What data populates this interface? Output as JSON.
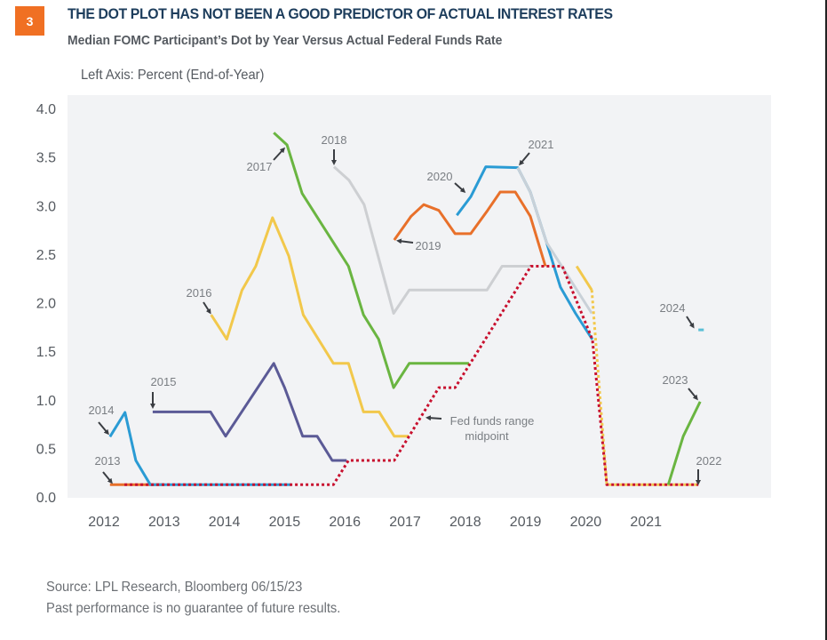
{
  "figure": {
    "number": "3",
    "title": "THE DOT PLOT HAS NOT BEEN A GOOD PREDICTOR OF ACTUAL INTEREST RATES",
    "subtitle": "Median FOMC Participant’s Dot by Year Versus Actual Federal Funds Rate",
    "axis_note": "Left Axis: Percent (End-of-Year)",
    "source": "Source: LPL Research, Bloomberg  06/15/23",
    "disclaimer": "Past performance is no guarantee of future results.",
    "badge_color": "#f07023",
    "title_color": "#1d3d5c"
  },
  "chart_data": {
    "type": "line",
    "title": "Median FOMC Participant’s Dot by Year Versus Actual Federal Funds Rate",
    "xlabel": "",
    "ylabel": "Percent (End-of-Year)",
    "ylim": [
      0,
      4
    ],
    "y_ticks": [
      "0.0",
      "0.5",
      "1.0",
      "1.5",
      "2.0",
      "2.5",
      "3.0",
      "3.5",
      "4.0"
    ],
    "x_ticks": [
      "2012",
      "2013",
      "2014",
      "2015",
      "2016",
      "2017",
      "2018",
      "2019",
      "2020",
      "2021"
    ],
    "grid": false,
    "series": [
      {
        "name": "2013",
        "color": "#e8702a",
        "style": "solid",
        "points": [
          [
            2012.1,
            0.125
          ],
          [
            2013.0,
            0.125
          ]
        ]
      },
      {
        "name": "2014",
        "color": "#2a9bd4",
        "style": "solid",
        "points": [
          [
            2012.1,
            0.62
          ],
          [
            2012.35,
            0.87
          ],
          [
            2012.53,
            0.375
          ],
          [
            2012.77,
            0.125
          ],
          [
            2015.11,
            0.125
          ]
        ]
      },
      {
        "name": "2015",
        "color": "#5b5a96",
        "style": "solid",
        "points": [
          [
            2012.81,
            0.875
          ],
          [
            2013.77,
            0.875
          ],
          [
            2014.02,
            0.625
          ],
          [
            2014.82,
            1.375
          ],
          [
            2015.0,
            1.125
          ],
          [
            2015.3,
            0.625
          ],
          [
            2015.54,
            0.625
          ],
          [
            2015.79,
            0.375
          ],
          [
            2016.03,
            0.375
          ]
        ]
      },
      {
        "name": "2016",
        "color": "#f2c84b",
        "style": "solid",
        "points": [
          [
            2013.78,
            1.875
          ],
          [
            2014.04,
            1.625
          ],
          [
            2014.29,
            2.125
          ],
          [
            2014.52,
            2.375
          ],
          [
            2014.8,
            2.875
          ],
          [
            2015.07,
            2.48
          ],
          [
            2015.31,
            1.875
          ],
          [
            2015.81,
            1.375
          ],
          [
            2016.06,
            1.375
          ],
          [
            2016.31,
            0.875
          ],
          [
            2016.57,
            0.875
          ],
          [
            2016.82,
            0.625
          ],
          [
            2017.06,
            0.625
          ]
        ]
      },
      {
        "name": "2017",
        "color": "#6ab541",
        "style": "solid",
        "points": [
          [
            2014.82,
            3.75
          ],
          [
            2015.04,
            3.625
          ],
          [
            2015.29,
            3.125
          ],
          [
            2016.06,
            2.375
          ],
          [
            2016.31,
            1.875
          ],
          [
            2016.56,
            1.625
          ],
          [
            2016.81,
            1.125
          ],
          [
            2017.07,
            1.375
          ],
          [
            2018.06,
            1.375
          ]
        ]
      },
      {
        "name": "2018",
        "color": "#cdcfd2",
        "style": "solid",
        "points": [
          [
            2015.82,
            3.4
          ],
          [
            2016.07,
            3.26
          ],
          [
            2016.32,
            3.01
          ],
          [
            2016.81,
            1.89
          ],
          [
            2017.07,
            2.13
          ],
          [
            2018.36,
            2.13
          ],
          [
            2018.61,
            2.375
          ],
          [
            2019.12,
            2.375
          ]
        ]
      },
      {
        "name": "2019",
        "color": "#e8702a",
        "style": "solid",
        "points": [
          [
            2016.82,
            2.645
          ],
          [
            2017.1,
            2.89
          ],
          [
            2017.31,
            3.01
          ],
          [
            2017.56,
            2.95
          ],
          [
            2017.83,
            2.71
          ],
          [
            2018.09,
            2.71
          ],
          [
            2018.37,
            2.95
          ],
          [
            2018.58,
            3.14
          ],
          [
            2018.83,
            3.14
          ],
          [
            2019.08,
            2.89
          ],
          [
            2019.33,
            2.375
          ]
        ]
      },
      {
        "name": "2020",
        "color": "#2a9bd4",
        "style": "solid",
        "points": [
          [
            2017.86,
            2.9
          ],
          [
            2018.09,
            3.09
          ],
          [
            2018.34,
            3.4
          ],
          [
            2018.87,
            3.39
          ],
          [
            2019.08,
            3.14
          ],
          [
            2019.35,
            2.62
          ],
          [
            2019.58,
            2.16
          ],
          [
            2019.83,
            1.89
          ],
          [
            2020.11,
            1.62
          ]
        ]
      },
      {
        "name": "2021",
        "color": "#c9d1d8",
        "style": "solid",
        "points": [
          [
            2018.87,
            3.39
          ],
          [
            2019.08,
            3.14
          ],
          [
            2019.35,
            2.62
          ],
          [
            2020.1,
            1.89
          ]
        ]
      },
      {
        "name": "2022",
        "color": "#f2c84b",
        "style": "solid",
        "points": [
          [
            2019.85,
            2.375
          ],
          [
            2020.1,
            2.13
          ]
        ]
      },
      {
        "name": "2022 (realized)",
        "color": "#f2c84b",
        "style": "dotted",
        "points": [
          [
            2020.1,
            2.13
          ],
          [
            2020.35,
            0.125
          ],
          [
            2021.87,
            0.125
          ]
        ]
      },
      {
        "name": "2023",
        "color": "#6ab541",
        "style": "solid",
        "points": [
          [
            2021.37,
            0.125
          ],
          [
            2021.62,
            0.625
          ],
          [
            2021.9,
            0.98
          ]
        ]
      },
      {
        "name": "2024",
        "color": "#5bbfd6",
        "style": "solid",
        "points": [
          [
            2021.87,
            1.72
          ],
          [
            2021.96,
            1.72
          ]
        ]
      },
      {
        "name": "Fed funds range midpoint",
        "color": "#c8102e",
        "style": "dotted",
        "points": [
          [
            2012.34,
            0.125
          ],
          [
            2015.81,
            0.125
          ],
          [
            2016.06,
            0.375
          ],
          [
            2016.82,
            0.375
          ],
          [
            2017.56,
            1.125
          ],
          [
            2017.83,
            1.125
          ],
          [
            2019.09,
            2.375
          ],
          [
            2019.61,
            2.375
          ],
          [
            2020.11,
            1.62
          ],
          [
            2020.35,
            0.125
          ],
          [
            2021.87,
            0.125
          ]
        ]
      }
    ],
    "annotations": [
      {
        "label": "2013",
        "series": "2013"
      },
      {
        "label": "2014",
        "series": "2014"
      },
      {
        "label": "2015",
        "series": "2015"
      },
      {
        "label": "2016",
        "series": "2016"
      },
      {
        "label": "2017",
        "series": "2017"
      },
      {
        "label": "2018",
        "series": "2018"
      },
      {
        "label": "2019",
        "series": "2019"
      },
      {
        "label": "2020",
        "series": "2020"
      },
      {
        "label": "2021",
        "series": "2021"
      },
      {
        "label": "2022",
        "series": "2022"
      },
      {
        "label": "2023",
        "series": "2023"
      },
      {
        "label": "2024",
        "series": "2024"
      },
      {
        "label": "Fed funds range",
        "label2": "midpoint",
        "series": "Fed funds range midpoint"
      }
    ],
    "plot_background": "#f2f3f5"
  }
}
